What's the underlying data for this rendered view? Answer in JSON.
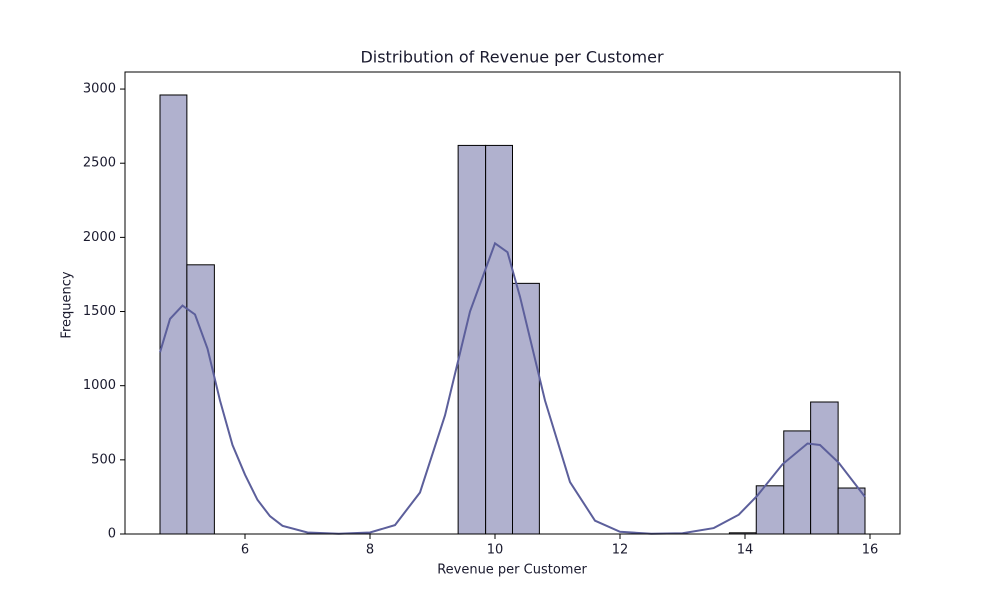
{
  "chart_data": {
    "type": "histogram",
    "title": "Distribution of Revenue per Customer",
    "xlabel": "Revenue per Customer",
    "ylabel": "Frequency",
    "bins": [
      4.64,
      5.07,
      5.51,
      5.94,
      6.38,
      6.81,
      7.24,
      7.68,
      8.11,
      8.54,
      8.98,
      9.41,
      9.85,
      10.28,
      10.71,
      11.15,
      11.58,
      12.01,
      12.45,
      12.88,
      13.32,
      13.75,
      14.18,
      14.62,
      15.05,
      15.49,
      15.92
    ],
    "counts": [
      2960,
      1815,
      0,
      0,
      0,
      0,
      0,
      0,
      0,
      0,
      0,
      2620,
      2620,
      1690,
      0,
      0,
      0,
      0,
      0,
      0,
      0,
      8,
      325,
      695,
      890,
      310
    ],
    "color": "#b0b1ce",
    "kde": {
      "color": "#5c5f9b",
      "x": [
        4.64,
        4.8,
        5.0,
        5.2,
        5.4,
        5.6,
        5.8,
        6.0,
        6.2,
        6.4,
        6.6,
        7.0,
        7.5,
        8.0,
        8.4,
        8.8,
        9.2,
        9.6,
        10.0,
        10.2,
        10.4,
        10.8,
        11.2,
        11.6,
        12.0,
        12.5,
        13.0,
        13.5,
        13.9,
        14.2,
        14.6,
        15.0,
        15.2,
        15.5,
        15.92
      ],
      "values": [
        1225,
        1450,
        1540,
        1480,
        1250,
        900,
        600,
        400,
        230,
        120,
        55,
        10,
        2,
        10,
        60,
        280,
        800,
        1500,
        1960,
        1900,
        1600,
        900,
        350,
        90,
        15,
        2,
        5,
        40,
        130,
        260,
        470,
        610,
        600,
        480,
        250
      ]
    },
    "xlim": [
      4.08,
      16.48
    ],
    "ylim": [
      0,
      3115
    ],
    "xticks": [
      6,
      8,
      10,
      12,
      14,
      16
    ],
    "yticks": [
      0,
      500,
      1000,
      1500,
      2000,
      2500,
      3000
    ]
  }
}
